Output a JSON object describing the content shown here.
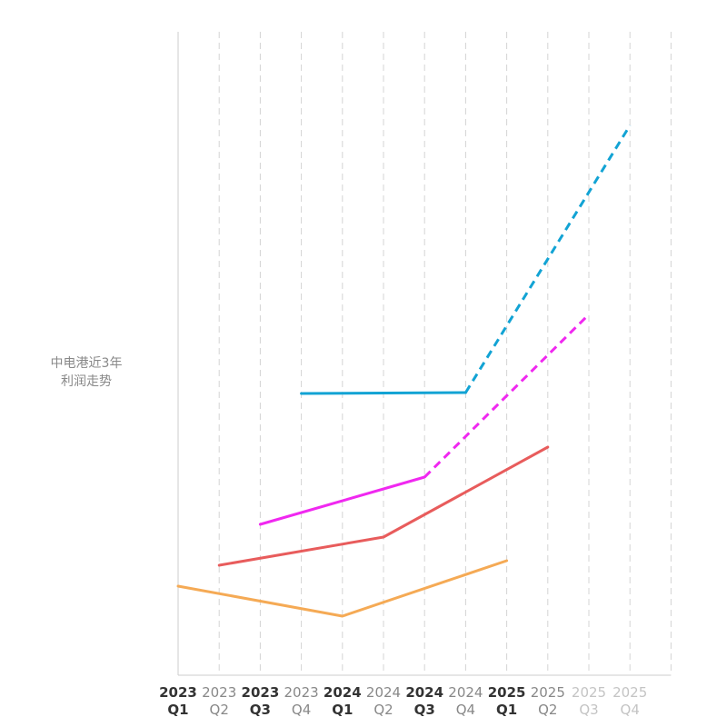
{
  "side_title": {
    "line1": "中电港近3年",
    "line2": "利润走势"
  },
  "chart_data": {
    "type": "line",
    "categories": [
      {
        "year": "2023",
        "quarter": "Q1",
        "emphasis": "dark"
      },
      {
        "year": "2023",
        "quarter": "Q2",
        "emphasis": "mid"
      },
      {
        "year": "2023",
        "quarter": "Q3",
        "emphasis": "dark"
      },
      {
        "year": "2023",
        "quarter": "Q4",
        "emphasis": "mid"
      },
      {
        "year": "2024",
        "quarter": "Q1",
        "emphasis": "dark"
      },
      {
        "year": "2024",
        "quarter": "Q2",
        "emphasis": "mid"
      },
      {
        "year": "2024",
        "quarter": "Q3",
        "emphasis": "dark"
      },
      {
        "year": "2024",
        "quarter": "Q4",
        "emphasis": "mid"
      },
      {
        "year": "2025",
        "quarter": "Q1",
        "emphasis": "dark"
      },
      {
        "year": "2025",
        "quarter": "Q2",
        "emphasis": "mid"
      },
      {
        "year": "2025",
        "quarter": "Q3",
        "emphasis": "light"
      },
      {
        "year": "2025",
        "quarter": "Q4",
        "emphasis": "light"
      }
    ],
    "grid": "vertical dashed",
    "y_axis_labels": "none",
    "series": [
      {
        "color": "#12a3d4",
        "points": [
          [
            3,
            310
          ],
          [
            7,
            311
          ]
        ],
        "projection": [
          [
            7,
            311
          ],
          [
            11,
            605
          ]
        ]
      },
      {
        "color": "#f028f0",
        "points": [
          [
            2,
            166
          ],
          [
            6,
            218
          ]
        ],
        "projection": [
          [
            6,
            218
          ],
          [
            10,
            397
          ]
        ]
      },
      {
        "color": "#e85c5c",
        "points": [
          [
            1,
            121
          ],
          [
            5,
            152
          ],
          [
            9,
            251
          ]
        ],
        "projection": []
      },
      {
        "color": "#f5aa55",
        "points": [
          [
            0,
            98
          ],
          [
            4,
            65
          ],
          [
            8,
            126
          ]
        ],
        "projection": []
      }
    ]
  },
  "colors": {
    "axis": "#cccccc",
    "grid": "#d4d4d4",
    "tick_dark": "#333333",
    "tick_mid": "#888888",
    "tick_light": "#c4c4c4"
  }
}
